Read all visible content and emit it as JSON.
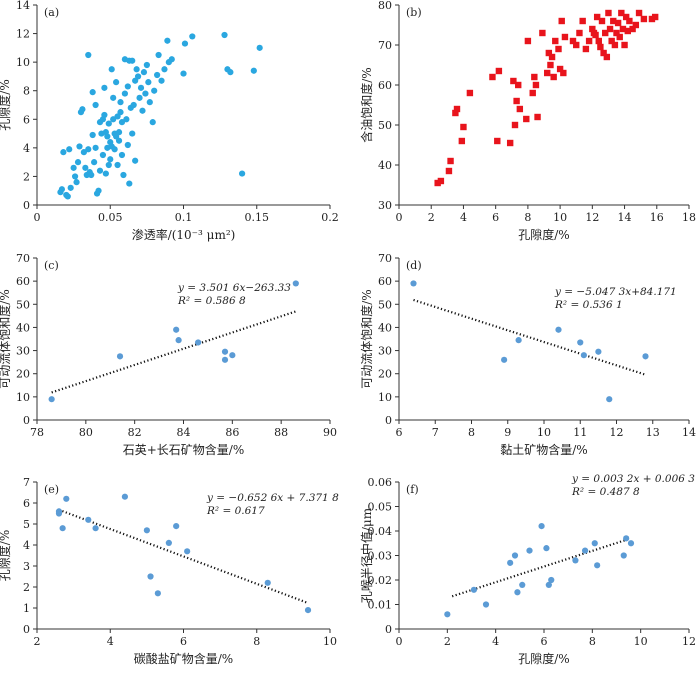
{
  "chart_data": [
    {
      "type": "scatter",
      "panel": "(a)",
      "xlabel": "渗透率/(10⁻³ μm²)",
      "ylabel": "孔隙度/%",
      "xlim": [
        0,
        0.2
      ],
      "ylim": [
        0,
        14
      ],
      "xticks": [
        0,
        0.05,
        0.1,
        0.15,
        0.2
      ],
      "yticks": [
        0,
        2,
        4,
        6,
        8,
        10,
        12,
        14
      ],
      "xticklabels": [
        "0",
        "0.05",
        "0.1",
        "0.15",
        "0.2"
      ],
      "marker": "circle",
      "color": "#2aa7e0",
      "points": [
        [
          0.016,
          0.9
        ],
        [
          0.017,
          1.1
        ],
        [
          0.018,
          3.7
        ],
        [
          0.02,
          0.7
        ],
        [
          0.021,
          0.6
        ],
        [
          0.022,
          3.9
        ],
        [
          0.023,
          1.2
        ],
        [
          0.025,
          2.6
        ],
        [
          0.026,
          2.0
        ],
        [
          0.027,
          1.6
        ],
        [
          0.028,
          3.0
        ],
        [
          0.029,
          4.1
        ],
        [
          0.03,
          6.5
        ],
        [
          0.031,
          6.7
        ],
        [
          0.032,
          3.7
        ],
        [
          0.033,
          2.6
        ],
        [
          0.034,
          2.1
        ],
        [
          0.035,
          10.5
        ],
        [
          0.035,
          3.9
        ],
        [
          0.036,
          2.3
        ],
        [
          0.037,
          2.1
        ],
        [
          0.038,
          4.9
        ],
        [
          0.038,
          7.9
        ],
        [
          0.039,
          3.0
        ],
        [
          0.04,
          4.0
        ],
        [
          0.04,
          7.0
        ],
        [
          0.041,
          0.8
        ],
        [
          0.042,
          1.0
        ],
        [
          0.043,
          2.4
        ],
        [
          0.043,
          5.8
        ],
        [
          0.044,
          5.0
        ],
        [
          0.045,
          3.5
        ],
        [
          0.045,
          6.0
        ],
        [
          0.046,
          6.3
        ],
        [
          0.046,
          8.2
        ],
        [
          0.047,
          5.1
        ],
        [
          0.047,
          2.2
        ],
        [
          0.048,
          4.0
        ],
        [
          0.048,
          4.8
        ],
        [
          0.049,
          2.8
        ],
        [
          0.049,
          5.7
        ],
        [
          0.05,
          4.4
        ],
        [
          0.05,
          3.2
        ],
        [
          0.051,
          4.1
        ],
        [
          0.051,
          9.5
        ],
        [
          0.052,
          6.0
        ],
        [
          0.052,
          7.5
        ],
        [
          0.053,
          5.0
        ],
        [
          0.053,
          3.9
        ],
        [
          0.054,
          8.6
        ],
        [
          0.054,
          4.8
        ],
        [
          0.055,
          2.8
        ],
        [
          0.055,
          6.2
        ],
        [
          0.056,
          5.1
        ],
        [
          0.056,
          4.5
        ],
        [
          0.057,
          6.5
        ],
        [
          0.057,
          7.2
        ],
        [
          0.058,
          3.5
        ],
        [
          0.058,
          5.8
        ],
        [
          0.059,
          2.1
        ],
        [
          0.06,
          10.2
        ],
        [
          0.06,
          7.8
        ],
        [
          0.061,
          6.0
        ],
        [
          0.062,
          8.3
        ],
        [
          0.062,
          4.2
        ],
        [
          0.063,
          1.5
        ],
        [
          0.063,
          10.1
        ],
        [
          0.064,
          6.8
        ],
        [
          0.065,
          5.0
        ],
        [
          0.065,
          10.1
        ],
        [
          0.066,
          7.0
        ],
        [
          0.067,
          3.1
        ],
        [
          0.067,
          8.7
        ],
        [
          0.068,
          9.5
        ],
        [
          0.069,
          9.0
        ],
        [
          0.07,
          7.5
        ],
        [
          0.071,
          8.2
        ],
        [
          0.072,
          6.6
        ],
        [
          0.073,
          9.3
        ],
        [
          0.074,
          7.8
        ],
        [
          0.075,
          9.8
        ],
        [
          0.076,
          8.6
        ],
        [
          0.077,
          7.2
        ],
        [
          0.079,
          5.8
        ],
        [
          0.08,
          8.0
        ],
        [
          0.082,
          9.1
        ],
        [
          0.083,
          10.5
        ],
        [
          0.085,
          8.7
        ],
        [
          0.087,
          9.5
        ],
        [
          0.089,
          11.5
        ],
        [
          0.09,
          10.0
        ],
        [
          0.092,
          10.2
        ],
        [
          0.1,
          9.2
        ],
        [
          0.101,
          11.3
        ],
        [
          0.106,
          11.8
        ],
        [
          0.128,
          11.9
        ],
        [
          0.13,
          9.5
        ],
        [
          0.132,
          9.3
        ],
        [
          0.14,
          2.2
        ],
        [
          0.148,
          9.4
        ],
        [
          0.152,
          11.0
        ]
      ]
    },
    {
      "type": "scatter",
      "panel": "(b)",
      "xlabel": "孔隙度/%",
      "ylabel": "含油饱和度/%",
      "xlim": [
        0,
        18
      ],
      "ylim": [
        30,
        80
      ],
      "xticks": [
        0,
        2,
        4,
        6,
        8,
        10,
        12,
        14,
        16,
        18
      ],
      "yticks": [
        30,
        40,
        50,
        60,
        70,
        80
      ],
      "marker": "square",
      "color": "#e8141c",
      "points": [
        [
          2.4,
          35.5
        ],
        [
          2.6,
          36.0
        ],
        [
          3.1,
          38.5
        ],
        [
          3.2,
          41.0
        ],
        [
          3.5,
          53.0
        ],
        [
          3.6,
          54.0
        ],
        [
          3.9,
          46.0
        ],
        [
          4.0,
          49.5
        ],
        [
          4.4,
          58.0
        ],
        [
          5.8,
          62.0
        ],
        [
          6.1,
          46.0
        ],
        [
          6.2,
          63.5
        ],
        [
          6.9,
          45.5
        ],
        [
          7.1,
          61.0
        ],
        [
          7.2,
          50.0
        ],
        [
          7.3,
          56.0
        ],
        [
          7.4,
          60.0
        ],
        [
          7.5,
          54.0
        ],
        [
          7.9,
          51.5
        ],
        [
          8.0,
          71.0
        ],
        [
          8.3,
          58.0
        ],
        [
          8.4,
          62.0
        ],
        [
          8.5,
          60.0
        ],
        [
          8.6,
          52.0
        ],
        [
          8.9,
          73.0
        ],
        [
          9.2,
          63.0
        ],
        [
          9.3,
          68.0
        ],
        [
          9.4,
          65.0
        ],
        [
          9.5,
          67.0
        ],
        [
          9.6,
          62.0
        ],
        [
          9.7,
          71.0
        ],
        [
          9.9,
          69.0
        ],
        [
          10.0,
          64.0
        ],
        [
          10.1,
          76.0
        ],
        [
          10.2,
          63.0
        ],
        [
          10.3,
          72.0
        ],
        [
          10.8,
          71.0
        ],
        [
          11.0,
          70.0
        ],
        [
          11.2,
          73.0
        ],
        [
          11.4,
          76.0
        ],
        [
          11.6,
          69.0
        ],
        [
          11.8,
          71.0
        ],
        [
          12.0,
          74.0
        ],
        [
          12.1,
          73.0
        ],
        [
          12.2,
          72.5
        ],
        [
          12.3,
          77.0
        ],
        [
          12.4,
          71.0
        ],
        [
          12.5,
          69.5
        ],
        [
          12.6,
          76.0
        ],
        [
          12.7,
          68.0
        ],
        [
          12.8,
          73.0
        ],
        [
          12.9,
          67.0
        ],
        [
          13.0,
          78.0
        ],
        [
          13.1,
          74.0
        ],
        [
          13.2,
          71.0
        ],
        [
          13.3,
          76.0
        ],
        [
          13.4,
          70.0
        ],
        [
          13.5,
          73.0
        ],
        [
          13.6,
          75.5
        ],
        [
          13.7,
          72.0
        ],
        [
          13.8,
          78.0
        ],
        [
          13.9,
          74.0
        ],
        [
          14.0,
          70.0
        ],
        [
          14.1,
          77.0
        ],
        [
          14.2,
          73.5
        ],
        [
          14.3,
          76.0
        ],
        [
          14.5,
          74.0
        ],
        [
          14.7,
          75.0
        ],
        [
          14.9,
          78.0
        ],
        [
          15.2,
          76.5
        ],
        [
          15.7,
          76.5
        ],
        [
          15.9,
          77.0
        ]
      ]
    },
    {
      "type": "scatter",
      "panel": "(c)",
      "xlabel": "石英+长石矿物含量/%",
      "ylabel": "可动流体饱和度/%",
      "xlim": [
        78,
        90
      ],
      "ylim": [
        0,
        70
      ],
      "xticks": [
        78,
        80,
        82,
        84,
        86,
        88,
        90
      ],
      "yticks": [
        0,
        10,
        20,
        30,
        40,
        50,
        60,
        70
      ],
      "marker": "circle",
      "color": "#5b9bd5",
      "points": [
        [
          78.6,
          9.0
        ],
        [
          81.4,
          27.5
        ],
        [
          83.7,
          39.0
        ],
        [
          83.8,
          34.5
        ],
        [
          84.6,
          33.5
        ],
        [
          85.7,
          29.5
        ],
        [
          85.7,
          26.0
        ],
        [
          86.0,
          28.0
        ],
        [
          88.6,
          59.0
        ]
      ],
      "trendline": {
        "slope": 3.5016,
        "intercept": -263.33,
        "x_range": [
          78.6,
          88.6
        ]
      },
      "equation": "y = 3.501 6x−263.33",
      "r2": "R² = 0.586 8"
    },
    {
      "type": "scatter",
      "panel": "(d)",
      "xlabel": "黏土矿物含量/%",
      "ylabel": "可动流体饱和度/%",
      "xlim": [
        6,
        14
      ],
      "ylim": [
        0,
        70
      ],
      "xticks": [
        6,
        7,
        8,
        9,
        10,
        11,
        12,
        13,
        14
      ],
      "yticks": [
        0,
        10,
        20,
        30,
        40,
        50,
        60,
        70
      ],
      "marker": "circle",
      "color": "#5b9bd5",
      "points": [
        [
          6.4,
          59.0
        ],
        [
          8.9,
          26.0
        ],
        [
          9.3,
          34.5
        ],
        [
          10.4,
          39.0
        ],
        [
          11.0,
          33.5
        ],
        [
          11.1,
          28.0
        ],
        [
          11.5,
          29.5
        ],
        [
          11.8,
          9.0
        ],
        [
          12.8,
          27.5
        ]
      ],
      "trendline": {
        "slope": -5.0473,
        "intercept": 84.171,
        "x_range": [
          6.4,
          12.8
        ]
      },
      "equation": "y = −5.047 3x+84.171",
      "r2": "R² = 0.536 1"
    },
    {
      "type": "scatter",
      "panel": "(e)",
      "xlabel": "碳酸盐矿物含量/%",
      "ylabel": "孔隙度/%",
      "xlim": [
        2,
        10
      ],
      "ylim": [
        0,
        7
      ],
      "xticks": [
        2,
        4,
        6,
        8,
        10
      ],
      "yticks": [
        0,
        1,
        2,
        3,
        4,
        5,
        6,
        7
      ],
      "marker": "circle",
      "color": "#5b9bd5",
      "points": [
        [
          2.6,
          5.6
        ],
        [
          2.6,
          5.5
        ],
        [
          2.7,
          4.8
        ],
        [
          2.8,
          6.2
        ],
        [
          3.4,
          5.2
        ],
        [
          3.6,
          4.8
        ],
        [
          4.4,
          6.3
        ],
        [
          5.0,
          4.7
        ],
        [
          5.1,
          2.5
        ],
        [
          5.3,
          1.7
        ],
        [
          5.6,
          4.1
        ],
        [
          5.8,
          4.9
        ],
        [
          6.1,
          3.7
        ],
        [
          8.3,
          2.2
        ],
        [
          9.4,
          0.9
        ]
      ],
      "trendline": {
        "slope": -0.6526,
        "intercept": 7.3718,
        "x_range": [
          2.6,
          9.4
        ]
      },
      "equation": "y = −0.652 6x + 7.371 8",
      "r2": "R² = 0.617"
    },
    {
      "type": "scatter",
      "panel": "(f)",
      "xlabel": "孔隙度/%",
      "ylabel": "孔喉半径中值/μm",
      "xlim": [
        0,
        12
      ],
      "ylim": [
        0,
        0.06
      ],
      "xticks": [
        0,
        2,
        4,
        6,
        8,
        10,
        12
      ],
      "yticks": [
        0,
        0.01,
        0.02,
        0.03,
        0.04,
        0.05,
        0.06
      ],
      "yticklabels": [
        "0",
        "0.01",
        "0.02",
        "0.03",
        "0.04",
        "0.05",
        "0.06"
      ],
      "marker": "circle",
      "color": "#5b9bd5",
      "points": [
        [
          2.0,
          0.006
        ],
        [
          3.1,
          0.016
        ],
        [
          3.6,
          0.01
        ],
        [
          4.6,
          0.027
        ],
        [
          4.8,
          0.03
        ],
        [
          4.9,
          0.015
        ],
        [
          5.1,
          0.018
        ],
        [
          5.4,
          0.032
        ],
        [
          5.9,
          0.042
        ],
        [
          6.1,
          0.033
        ],
        [
          6.2,
          0.018
        ],
        [
          6.3,
          0.02
        ],
        [
          7.3,
          0.028
        ],
        [
          7.7,
          0.032
        ],
        [
          8.1,
          0.035
        ],
        [
          8.2,
          0.026
        ],
        [
          9.3,
          0.03
        ],
        [
          9.4,
          0.037
        ],
        [
          9.6,
          0.035
        ]
      ],
      "trendline": {
        "slope": 0.0032,
        "intercept": 0.0063,
        "x_range": [
          2.2,
          9.5
        ]
      },
      "equation": "y = 0.003 2x + 0.006 3",
      "r2": "R² = 0.487 8"
    }
  ]
}
